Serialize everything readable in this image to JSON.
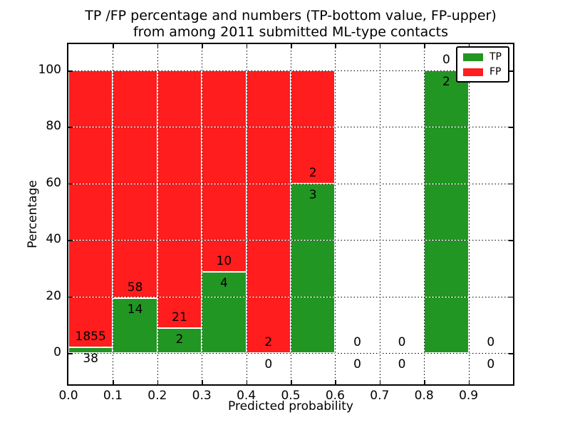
{
  "chart_data": {
    "type": "bar",
    "stacked": true,
    "title": "TP /FP percentage and numbers (TP-bottom value, FP-upper)",
    "subtitle": "from among 2011 submitted ML-type contacts",
    "xlabel": "Predicted probability",
    "ylabel": "Percentage",
    "x_tick_labels": [
      "0.0",
      "0.1",
      "0.2",
      "0.3",
      "0.4",
      "0.5",
      "0.6",
      "0.7",
      "0.8",
      "0.9"
    ],
    "x_tick_values": [
      0.0,
      0.1,
      0.2,
      0.3,
      0.4,
      0.5,
      0.6,
      0.7,
      0.8,
      0.9
    ],
    "y_ticks": [
      0,
      20,
      40,
      60,
      80,
      100
    ],
    "xlim": [
      0.0,
      1.0
    ],
    "ylim": [
      -11,
      109
    ],
    "grid": "dotted",
    "legend_position": "upper right",
    "colors": {
      "tp": "#229622",
      "fp": "#FF1D1D"
    },
    "legend": {
      "items": [
        {
          "label": "TP",
          "color": "#229622"
        },
        {
          "label": "FP",
          "color": "#FF1D1D"
        }
      ]
    },
    "bins": [
      {
        "range": [
          0.0,
          0.1
        ],
        "tp": 38,
        "fp": 1855,
        "tp_pct": 2.0
      },
      {
        "range": [
          0.1,
          0.2
        ],
        "tp": 14,
        "fp": 58,
        "tp_pct": 19.4
      },
      {
        "range": [
          0.2,
          0.3
        ],
        "tp": 2,
        "fp": 21,
        "tp_pct": 8.7
      },
      {
        "range": [
          0.3,
          0.4
        ],
        "tp": 4,
        "fp": 10,
        "tp_pct": 28.6
      },
      {
        "range": [
          0.4,
          0.5
        ],
        "tp": 0,
        "fp": 2,
        "tp_pct": 0.0
      },
      {
        "range": [
          0.5,
          0.6
        ],
        "tp": 3,
        "fp": 2,
        "tp_pct": 60.0
      },
      {
        "range": [
          0.6,
          0.7
        ],
        "tp": 0,
        "fp": 0,
        "tp_pct": 0.0
      },
      {
        "range": [
          0.7,
          0.8
        ],
        "tp": 0,
        "fp": 0,
        "tp_pct": 0.0
      },
      {
        "range": [
          0.8,
          0.9
        ],
        "tp": 2,
        "fp": 0,
        "tp_pct": 100.0
      },
      {
        "range": [
          0.9,
          1.0
        ],
        "tp": 0,
        "fp": 0,
        "tp_pct": 0.0
      }
    ]
  }
}
